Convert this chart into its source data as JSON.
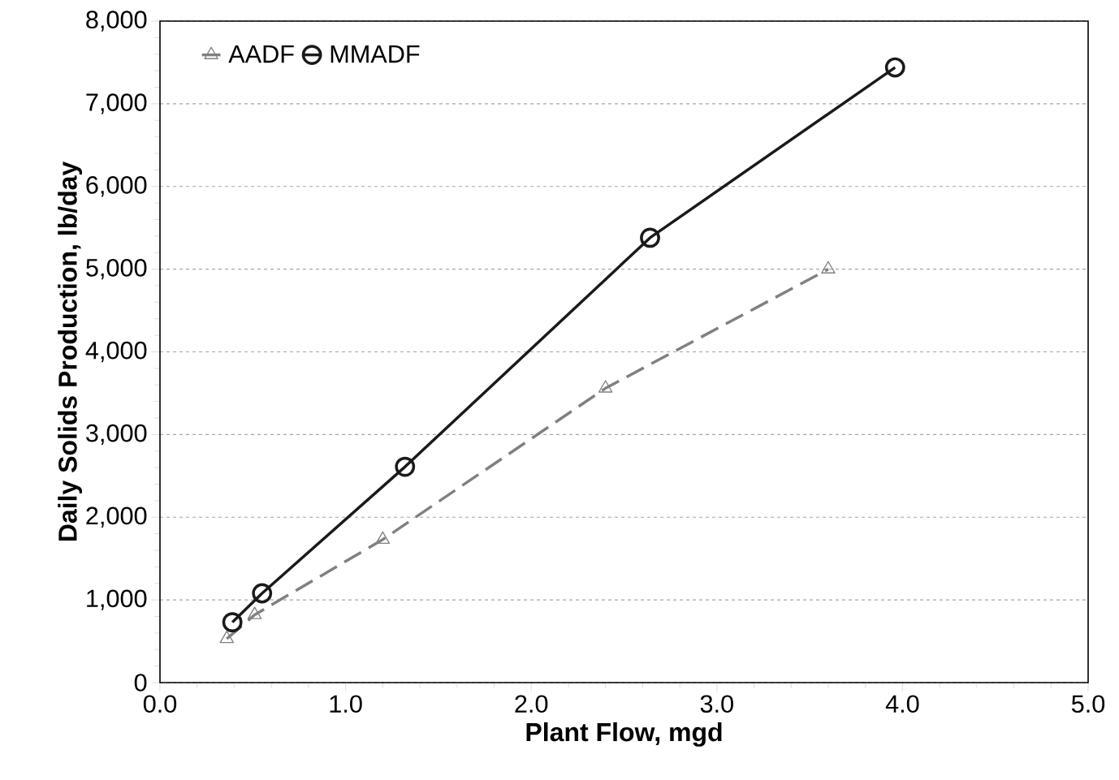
{
  "chart_data": {
    "type": "line",
    "xlabel": "Plant Flow, mgd",
    "ylabel": "Daily Solids Production, lb/day",
    "xlim": [
      0,
      5
    ],
    "ylim": [
      0,
      8000
    ],
    "xticks": [
      {
        "value": 0,
        "label": "0.0"
      },
      {
        "value": 1,
        "label": "1.0"
      },
      {
        "value": 2,
        "label": "2.0"
      },
      {
        "value": 3,
        "label": "3.0"
      },
      {
        "value": 4,
        "label": "4.0"
      },
      {
        "value": 5,
        "label": "5.0"
      }
    ],
    "yticks": [
      0,
      {
        "value": 1000,
        "label": "1,000"
      },
      {
        "value": 2000,
        "label": "2,000"
      },
      {
        "value": 3000,
        "label": "3,000"
      },
      {
        "value": 4000,
        "label": "4,000"
      },
      {
        "value": 5000,
        "label": "5,000"
      },
      {
        "value": 6000,
        "label": "6,000"
      },
      {
        "value": 7000,
        "label": "7,000"
      },
      {
        "value": 8000,
        "label": "8,000"
      }
    ],
    "grid": "y",
    "legend": "top left",
    "series": [
      {
        "name": "AADF",
        "color": "#808080",
        "marker": "triangle",
        "line_style": "dashed",
        "x": [
          0.36,
          0.51,
          1.2,
          2.4,
          3.6
        ],
        "values": [
          530,
          820,
          1730,
          3560,
          5000
        ]
      },
      {
        "name": "MMADF",
        "color": "#1a1a1a",
        "marker": "circle",
        "line_style": "solid",
        "x": [
          0.39,
          0.55,
          1.32,
          2.64,
          3.96
        ],
        "values": [
          730,
          1080,
          2610,
          5380,
          7440
        ]
      }
    ]
  }
}
